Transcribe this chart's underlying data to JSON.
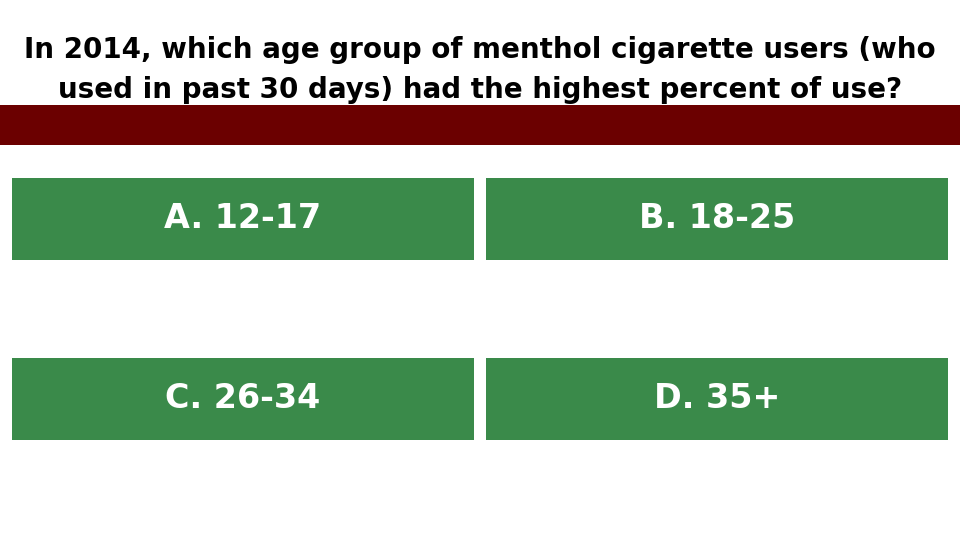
{
  "title_line1": "In 2014, which age group of menthol cigarette users (who",
  "title_line2": "used in past 30 days) had the highest percent of use?",
  "dark_red_bar_color": "#6B0000",
  "green_button_color": "#3A8A4A",
  "button_text_color": "#FFFFFF",
  "bg_color": "#FFFFFF",
  "title_color": "#000000",
  "options": [
    "A. 12-17",
    "B. 18-25",
    "C. 26-34",
    "D. 35+"
  ],
  "title_fontsize": 20,
  "button_fontsize": 24,
  "fig_width": 9.6,
  "fig_height": 5.4,
  "dpi": 100
}
